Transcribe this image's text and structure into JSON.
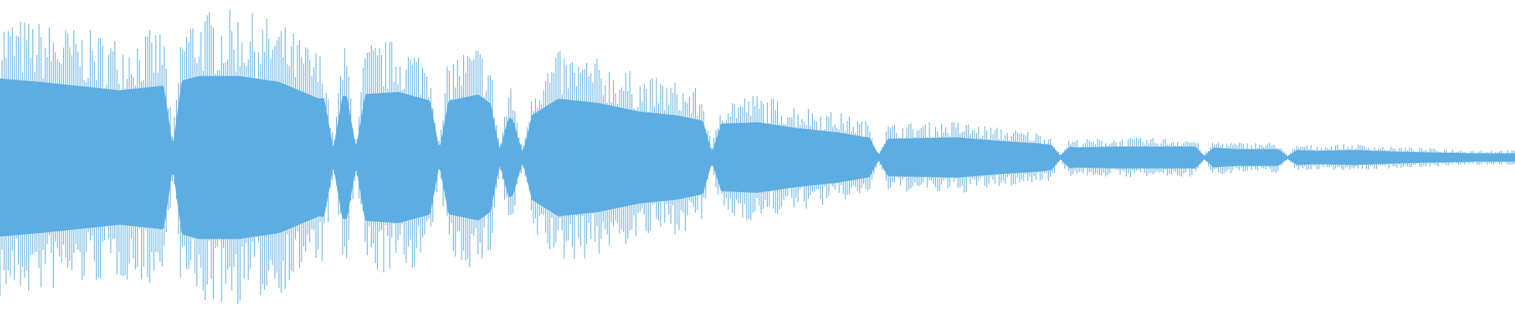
{
  "chart_data": {
    "type": "waveform",
    "title": "",
    "xlabel": "",
    "ylabel": "",
    "ylim": [
      -1,
      1
    ],
    "color": "#5dadE2",
    "grid": false,
    "legend": "none",
    "envelope_peak_amplitude": [
      0.94,
      0.9,
      0.85,
      0.8,
      0.85,
      0.97,
      0.97,
      0.9,
      0.7,
      0.75,
      0.78,
      0.65,
      0.75,
      0.4,
      0.7,
      0.65,
      0.55,
      0.5,
      0.4,
      0.42,
      0.35,
      0.3,
      0.22,
      0.23,
      0.24,
      0.2,
      0.17,
      0.12,
      0.13,
      0.13,
      0.13,
      0.1,
      0.1,
      0.08,
      0.09,
      0.07,
      0.06,
      0.05,
      0.05
    ],
    "core_to_peak_ratio": 0.55,
    "dips_at_fraction_of_duration": [
      0.114,
      0.22,
      0.235,
      0.29,
      0.33,
      0.345,
      0.47,
      0.58,
      0.7,
      0.795,
      0.85
    ]
  }
}
